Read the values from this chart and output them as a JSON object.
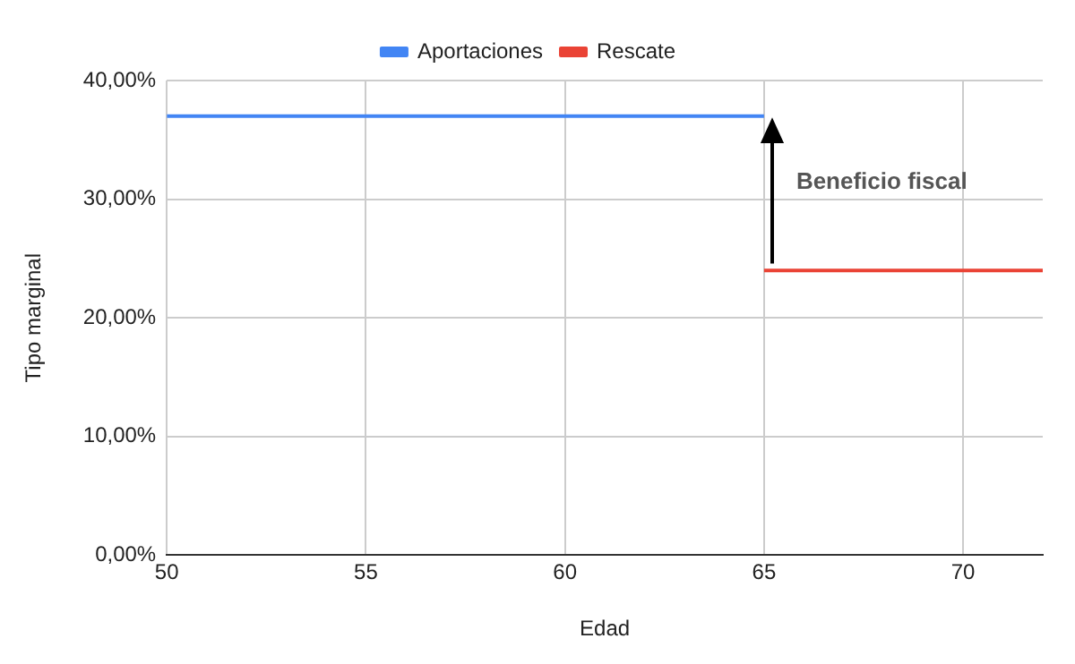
{
  "chart_data": {
    "type": "line",
    "xlabel": "Edad",
    "ylabel": "Tipo marginal",
    "series": [
      {
        "name": "Aportaciones",
        "color": "#4285f4",
        "x": [
          50,
          65
        ],
        "values": [
          37,
          37
        ]
      },
      {
        "name": "Rescate",
        "color": "#ea4335",
        "x": [
          65,
          72
        ],
        "values": [
          24,
          24
        ]
      }
    ],
    "xlim": [
      50,
      72
    ],
    "xticks": [
      50,
      55,
      60,
      65,
      70
    ],
    "ylim": [
      0,
      40
    ],
    "yticks": [
      {
        "value": 0,
        "label": "0,00%"
      },
      {
        "value": 10,
        "label": "10,00%"
      },
      {
        "value": 20,
        "label": "20,00%"
      },
      {
        "value": 30,
        "label": "30,00%"
      },
      {
        "value": 40,
        "label": "40,00%"
      }
    ],
    "grid": true,
    "legend": "top",
    "marker": "none",
    "line_style": "solid",
    "annotations": [
      "Beneficio fiscal"
    ]
  }
}
